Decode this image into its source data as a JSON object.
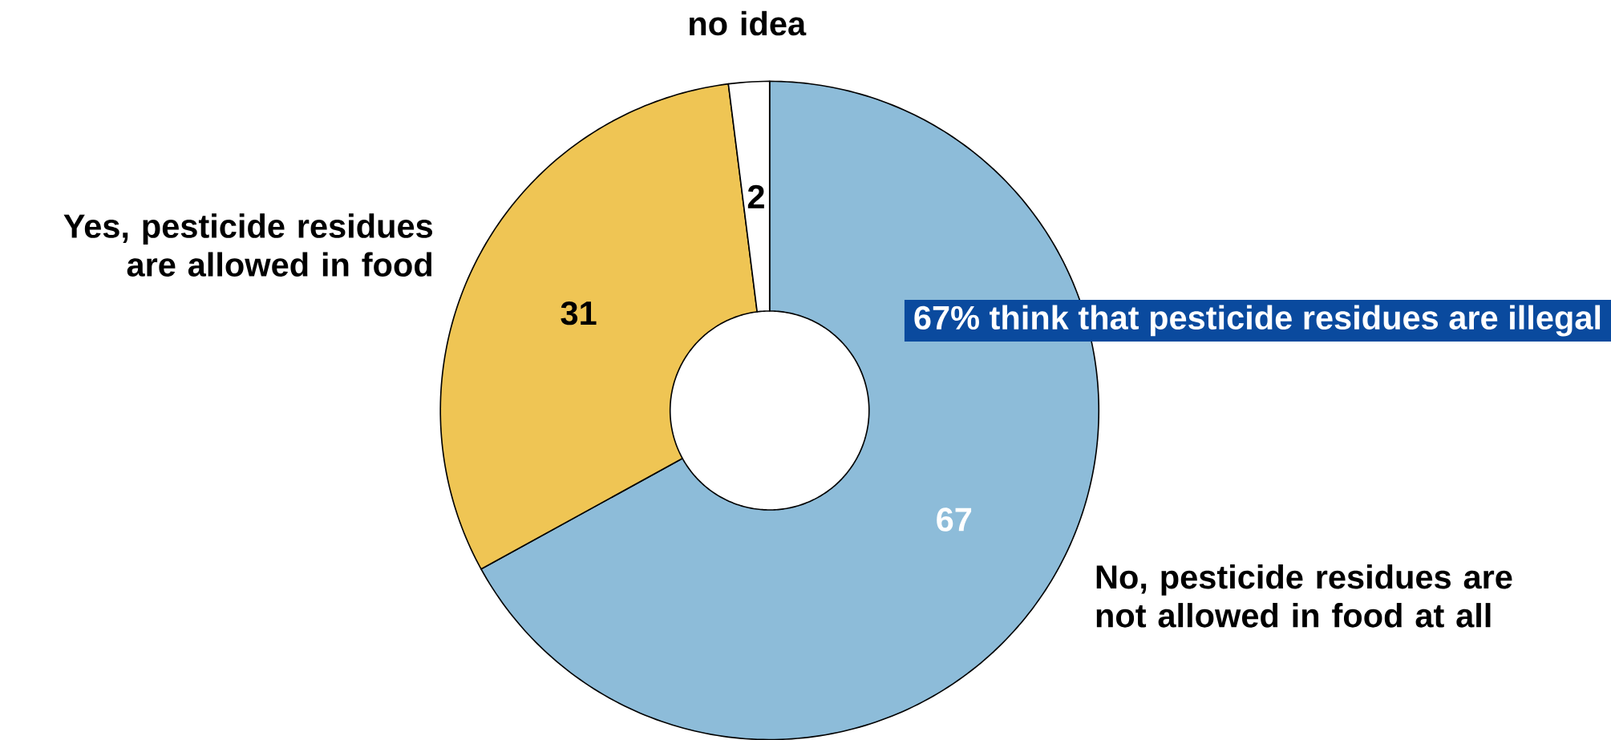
{
  "chart_data": {
    "type": "donut",
    "categories": [
      "No, pesticide residues are not allowed in food at all",
      "Yes, pesticide residues are allowed in food",
      "no idea"
    ],
    "values": [
      67,
      31,
      2
    ],
    "colors": [
      "#8dbcd9",
      "#efc554",
      "#ffffff"
    ],
    "data_labels": true,
    "annotations": [
      "67% think that pesticide residues are illegal"
    ]
  }
}
